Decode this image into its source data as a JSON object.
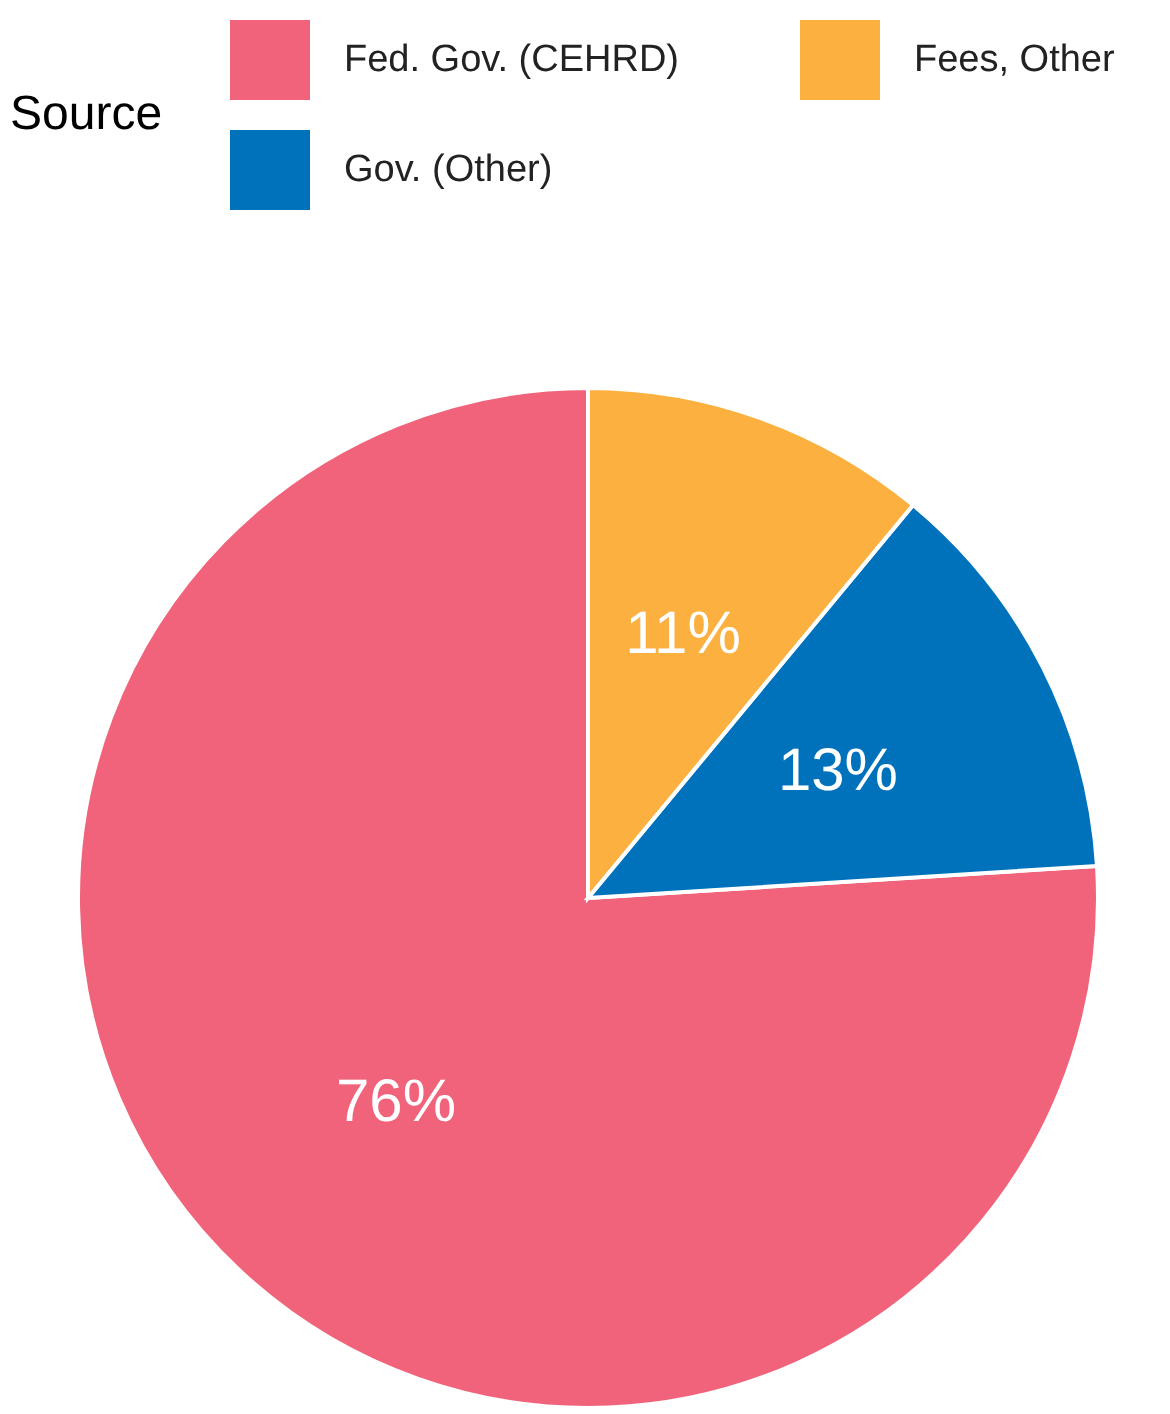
{
  "chart_data": {
    "type": "pie",
    "legend_title": "Source",
    "legend": "top",
    "categories": [
      "Fed. Gov. (CEHRD)",
      "Gov. (Other)",
      "Fees, Other"
    ],
    "values": [
      76,
      13,
      11
    ],
    "colors": [
      "#f0637a",
      "#0072bc",
      "#fbb040"
    ],
    "value_labels": [
      "76%",
      "13%",
      "11%"
    ]
  }
}
